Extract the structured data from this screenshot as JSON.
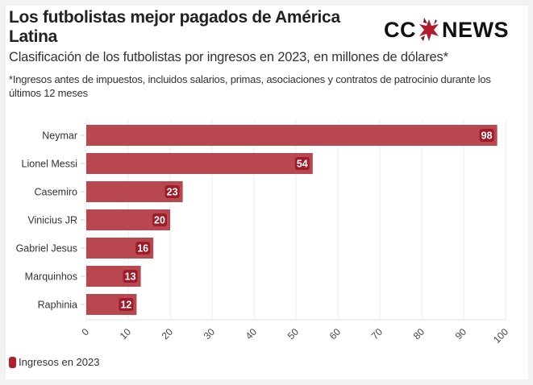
{
  "header": {
    "title": "Los futbolistas mejor pagados de América Latina",
    "subtitle": "Clasificación de los futbolistas por ingresos en 2023, en millones de dólares*",
    "note": "*Ingresos antes de impuestos, incluidos salarios, primas, asociaciones y contratos de patrocinio durante los últimos 12 meses"
  },
  "logo": {
    "left_text": "CC",
    "right_text": "NEWS",
    "icon": "star-icon"
  },
  "colors": {
    "bar": "#b94750",
    "label_bg": "#9e1b2a",
    "legend": "#b01e2d",
    "grid": "#ebebeb"
  },
  "chart_data": {
    "type": "bar",
    "orientation": "horizontal",
    "title": "Los futbolistas mejor pagados de América Latina",
    "categories": [
      "Neymar",
      "Lionel Messi",
      "Casemiro",
      "Vinicius JR",
      "Gabriel Jesus",
      "Marquinhos",
      "Raphinia"
    ],
    "series": [
      {
        "name": "Ingresos en 2023",
        "values": [
          98,
          54,
          23,
          20,
          16,
          13,
          12
        ]
      }
    ],
    "xlim": [
      0,
      100
    ],
    "xticks": [
      0,
      10,
      20,
      30,
      40,
      50,
      60,
      70,
      80,
      90,
      100
    ],
    "xlabel": "",
    "ylabel": "",
    "grid": true,
    "data_labels": true,
    "legend": {
      "position": "bottom-left",
      "entries": [
        "Ingresos en 2023"
      ]
    }
  }
}
